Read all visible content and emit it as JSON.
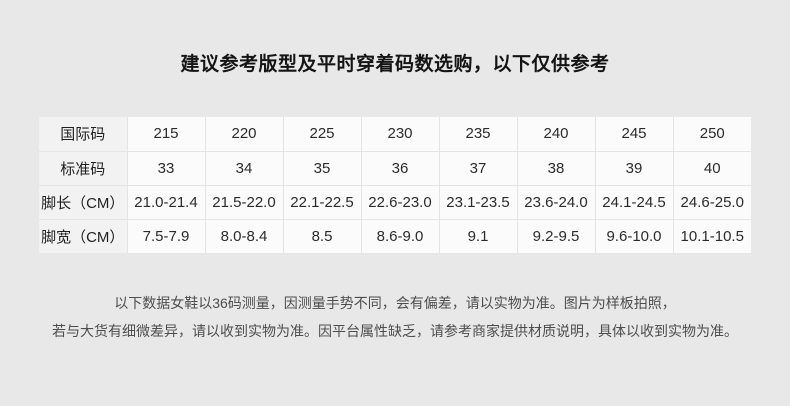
{
  "colors": {
    "page_background": "#e8e8e8",
    "cell_background": "#fbfbfb",
    "header_cell_background": "#f2f2f2",
    "grid_border": "#e4e4e4",
    "title_text": "#141414",
    "footer_text": "#4d4d4d"
  },
  "title": "建议参考版型及平时穿着码数选购，以下仅供参考",
  "size_table": {
    "rows": [
      {
        "label": "国际码",
        "values": [
          "215",
          "220",
          "225",
          "230",
          "235",
          "240",
          "245",
          "250"
        ]
      },
      {
        "label": "标准码",
        "values": [
          "33",
          "34",
          "35",
          "36",
          "37",
          "38",
          "39",
          "40"
        ]
      },
      {
        "label": "脚长（CM）",
        "values": [
          "21.0-21.4",
          "21.5-22.0",
          "22.1-22.5",
          "22.6-23.0",
          "23.1-23.5",
          "23.6-24.0",
          "24.1-24.5",
          "24.6-25.0"
        ]
      },
      {
        "label": "脚宽（CM）",
        "values": [
          "7.5-7.9",
          "8.0-8.4",
          "8.5",
          "8.6-9.0",
          "9.1",
          "9.2-9.5",
          "9.6-10.0",
          "10.1-10.5"
        ]
      }
    ]
  },
  "footer": {
    "line1": "以下数据女鞋以36码测量，因测量手势不同，会有偏差，请以实物为准。图片为样板拍照，",
    "line2": "若与大货有细微差异，请以收到实物为准。因平台属性缺乏，请参考商家提供材质说明，具体以收到实物为准。"
  }
}
